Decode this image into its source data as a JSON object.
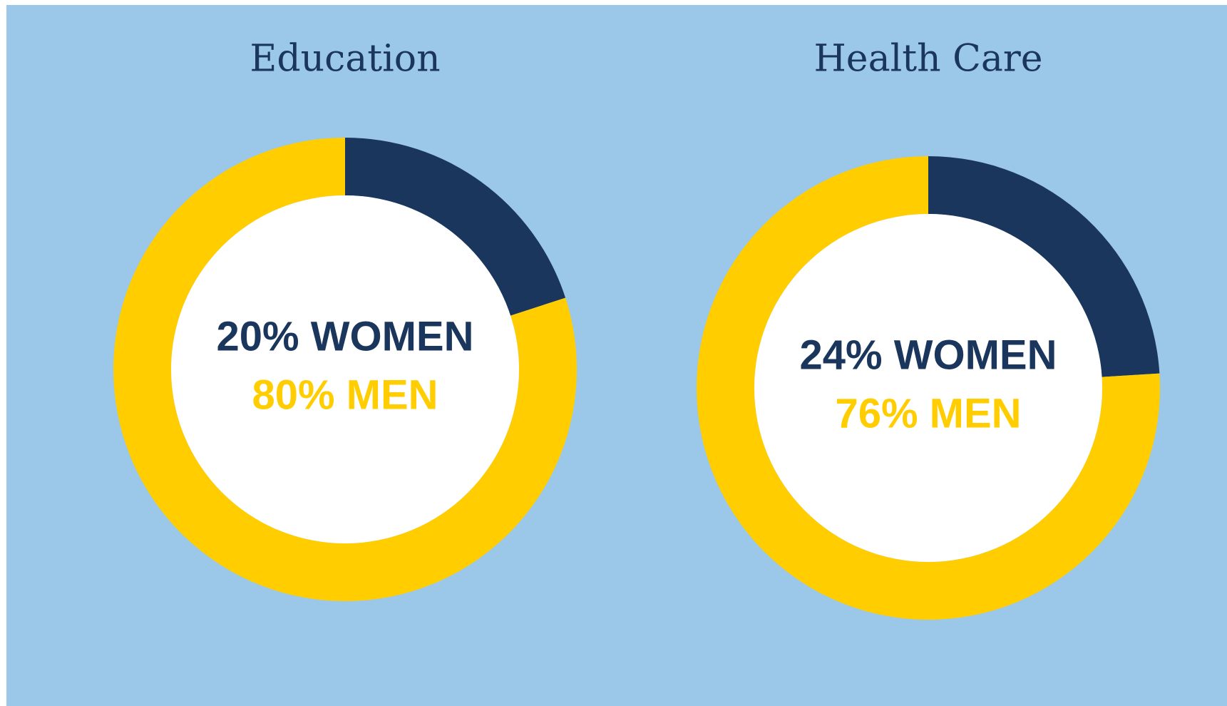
{
  "chart_data": [
    {
      "type": "pie",
      "title": "Education",
      "categories": [
        "WOMEN",
        "MEN"
      ],
      "values": [
        20,
        80
      ],
      "value_labels": [
        "20% WOMEN",
        "80% MEN"
      ],
      "colors": [
        "#1b365d",
        "#ffcd00"
      ],
      "donut": true
    },
    {
      "type": "pie",
      "title": "Health Care",
      "categories": [
        "WOMEN",
        "MEN"
      ],
      "values": [
        24,
        76
      ],
      "value_labels": [
        "24% WOMEN",
        "76% MEN"
      ],
      "colors": [
        "#1b365d",
        "#ffcd00"
      ],
      "donut": true
    }
  ]
}
